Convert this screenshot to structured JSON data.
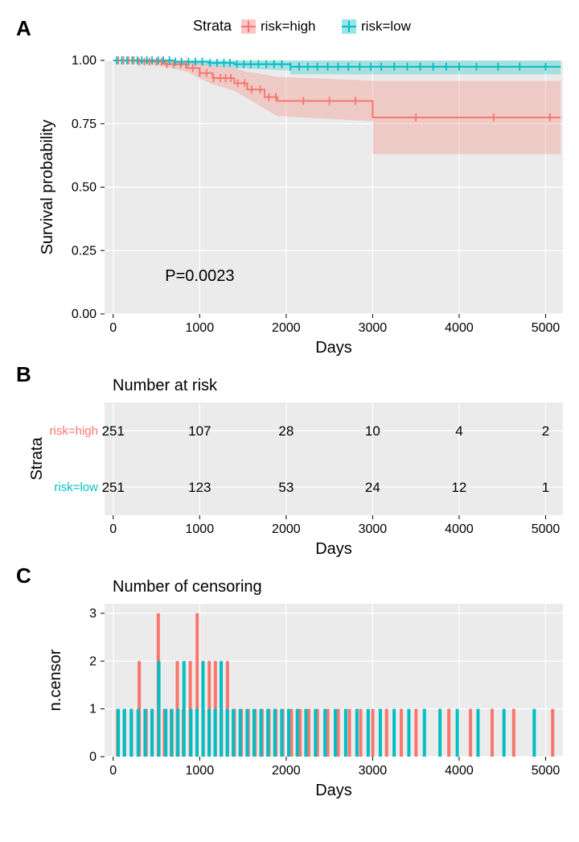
{
  "colors": {
    "high": "#f8766d",
    "low": "#00bfc4",
    "panel_bg": "#ebebeb",
    "grid": "#ffffff",
    "ci_high": "#f8766d",
    "ci_low": "#00bfc4",
    "text": "#000000"
  },
  "legend": {
    "title": "Strata",
    "items": [
      {
        "label": "risk=high",
        "color": "#f8766d"
      },
      {
        "label": "risk=low",
        "color": "#00bfc4"
      }
    ]
  },
  "panelA": {
    "label": "A",
    "x_title": "Days",
    "y_title": "Survival probability",
    "x_ticks": [
      0,
      1000,
      2000,
      3000,
      4000,
      5000
    ],
    "y_ticks": [
      0.0,
      0.25,
      0.5,
      0.75,
      1.0
    ],
    "xlim": [
      -100,
      5200
    ],
    "ylim": [
      0,
      1
    ],
    "p_text": "P=0.0023",
    "high": {
      "steps": [
        [
          0,
          1.0
        ],
        [
          300,
          1.0
        ],
        [
          300,
          0.995
        ],
        [
          600,
          0.995
        ],
        [
          600,
          0.985
        ],
        [
          850,
          0.985
        ],
        [
          850,
          0.97
        ],
        [
          1000,
          0.97
        ],
        [
          1000,
          0.95
        ],
        [
          1150,
          0.95
        ],
        [
          1150,
          0.93
        ],
        [
          1400,
          0.93
        ],
        [
          1400,
          0.91
        ],
        [
          1550,
          0.91
        ],
        [
          1550,
          0.885
        ],
        [
          1750,
          0.885
        ],
        [
          1750,
          0.855
        ],
        [
          1900,
          0.855
        ],
        [
          1900,
          0.84
        ],
        [
          3000,
          0.84
        ],
        [
          3000,
          0.775
        ],
        [
          5175,
          0.775
        ]
      ],
      "ci_upper": [
        [
          0,
          1.0
        ],
        [
          300,
          1.0
        ],
        [
          600,
          1.0
        ],
        [
          850,
          0.995
        ],
        [
          1000,
          0.99
        ],
        [
          1150,
          0.98
        ],
        [
          1400,
          0.97
        ],
        [
          1550,
          0.955
        ],
        [
          1750,
          0.945
        ],
        [
          1900,
          0.935
        ],
        [
          3000,
          0.92
        ],
        [
          5175,
          0.92
        ]
      ],
      "ci_lower": [
        [
          0,
          1.0
        ],
        [
          300,
          0.99
        ],
        [
          600,
          0.975
        ],
        [
          850,
          0.955
        ],
        [
          1000,
          0.93
        ],
        [
          1150,
          0.905
        ],
        [
          1400,
          0.88
        ],
        [
          1550,
          0.85
        ],
        [
          1750,
          0.81
        ],
        [
          1900,
          0.78
        ],
        [
          3000,
          0.76
        ],
        [
          3000,
          0.63
        ],
        [
          5175,
          0.63
        ]
      ],
      "ticks": [
        60,
        120,
        180,
        240,
        300,
        360,
        420,
        500,
        560,
        620,
        700,
        780,
        840,
        920,
        1000,
        1080,
        1160,
        1240,
        1300,
        1360,
        1440,
        1520,
        1600,
        1700,
        1800,
        1880,
        2200,
        2500,
        2800,
        3500,
        4400,
        5050
      ]
    },
    "low": {
      "steps": [
        [
          0,
          1.0
        ],
        [
          700,
          1.0
        ],
        [
          700,
          0.995
        ],
        [
          1100,
          0.995
        ],
        [
          1100,
          0.99
        ],
        [
          1400,
          0.99
        ],
        [
          1400,
          0.985
        ],
        [
          2050,
          0.985
        ],
        [
          2050,
          0.975
        ],
        [
          5175,
          0.975
        ]
      ],
      "ci_upper": [
        [
          0,
          1.0
        ],
        [
          5175,
          1.0
        ]
      ],
      "ci_lower": [
        [
          0,
          1.0
        ],
        [
          700,
          0.99
        ],
        [
          1100,
          0.98
        ],
        [
          1400,
          0.97
        ],
        [
          2050,
          0.96
        ],
        [
          2050,
          0.945
        ],
        [
          5175,
          0.945
        ]
      ],
      "ticks": [
        40,
        100,
        160,
        220,
        280,
        330,
        390,
        450,
        520,
        580,
        650,
        720,
        790,
        870,
        950,
        1030,
        1120,
        1200,
        1280,
        1350,
        1430,
        1510,
        1590,
        1680,
        1770,
        1860,
        1950,
        2050,
        2150,
        2250,
        2360,
        2480,
        2600,
        2720,
        2850,
        2980,
        3100,
        3250,
        3400,
        3550,
        3700,
        3850,
        4000,
        4200,
        4450,
        4700,
        5000
      ]
    }
  },
  "panelB": {
    "label": "B",
    "title": "Number at risk",
    "x_title": "Days",
    "y_title": "Strata",
    "x_ticks": [
      0,
      1000,
      2000,
      3000,
      4000,
      5000
    ],
    "rows": [
      {
        "label": "risk=high",
        "color": "#f8766d",
        "values": [
          251,
          107,
          28,
          10,
          4,
          2
        ]
      },
      {
        "label": "risk=low",
        "color": "#00bfc4",
        "values": [
          251,
          123,
          53,
          24,
          12,
          1
        ]
      }
    ]
  },
  "panelC": {
    "label": "C",
    "title": "Number of censoring",
    "x_title": "Days",
    "y_title": "n.censor",
    "x_ticks": [
      0,
      1000,
      2000,
      3000,
      4000,
      5000
    ],
    "y_ticks": [
      0,
      1,
      2,
      3
    ],
    "xlim": [
      -100,
      5200
    ],
    "ylim": [
      0,
      3.2
    ],
    "bars_high": [
      [
        70,
        1
      ],
      [
        150,
        1
      ],
      [
        230,
        1
      ],
      [
        320,
        2
      ],
      [
        400,
        1
      ],
      [
        470,
        1
      ],
      [
        540,
        3
      ],
      [
        610,
        1
      ],
      [
        690,
        1
      ],
      [
        760,
        2
      ],
      [
        830,
        1
      ],
      [
        910,
        2
      ],
      [
        990,
        3
      ],
      [
        1060,
        1
      ],
      [
        1130,
        2
      ],
      [
        1200,
        2
      ],
      [
        1270,
        1
      ],
      [
        1340,
        2
      ],
      [
        1420,
        1
      ],
      [
        1500,
        1
      ],
      [
        1580,
        1
      ],
      [
        1660,
        1
      ],
      [
        1740,
        1
      ],
      [
        1820,
        1
      ],
      [
        1900,
        1
      ],
      [
        1980,
        1
      ],
      [
        2080,
        1
      ],
      [
        2180,
        1
      ],
      [
        2280,
        1
      ],
      [
        2380,
        1
      ],
      [
        2500,
        1
      ],
      [
        2620,
        1
      ],
      [
        2750,
        1
      ],
      [
        2880,
        1
      ],
      [
        3020,
        1
      ],
      [
        3180,
        1
      ],
      [
        3350,
        1
      ],
      [
        3520,
        1
      ],
      [
        3900,
        1
      ],
      [
        4150,
        1
      ],
      [
        4400,
        1
      ],
      [
        4650,
        1
      ],
      [
        5100,
        1
      ]
    ],
    "bars_low": [
      [
        40,
        1
      ],
      [
        110,
        1
      ],
      [
        190,
        1
      ],
      [
        270,
        1
      ],
      [
        350,
        1
      ],
      [
        430,
        1
      ],
      [
        510,
        2
      ],
      [
        590,
        1
      ],
      [
        660,
        1
      ],
      [
        730,
        1
      ],
      [
        800,
        2
      ],
      [
        880,
        1
      ],
      [
        950,
        1
      ],
      [
        1020,
        2
      ],
      [
        1090,
        1
      ],
      [
        1160,
        1
      ],
      [
        1230,
        2
      ],
      [
        1300,
        1
      ],
      [
        1370,
        1
      ],
      [
        1450,
        1
      ],
      [
        1530,
        1
      ],
      [
        1610,
        1
      ],
      [
        1690,
        1
      ],
      [
        1770,
        1
      ],
      [
        1850,
        1
      ],
      [
        1930,
        1
      ],
      [
        2010,
        1
      ],
      [
        2110,
        1
      ],
      [
        2210,
        1
      ],
      [
        2320,
        1
      ],
      [
        2430,
        1
      ],
      [
        2550,
        1
      ],
      [
        2670,
        1
      ],
      [
        2800,
        1
      ],
      [
        2930,
        1
      ],
      [
        3070,
        1
      ],
      [
        3230,
        1
      ],
      [
        3400,
        1
      ],
      [
        3580,
        1
      ],
      [
        3760,
        1
      ],
      [
        3960,
        1
      ],
      [
        4200,
        1
      ],
      [
        4500,
        1
      ],
      [
        4850,
        1
      ]
    ]
  }
}
